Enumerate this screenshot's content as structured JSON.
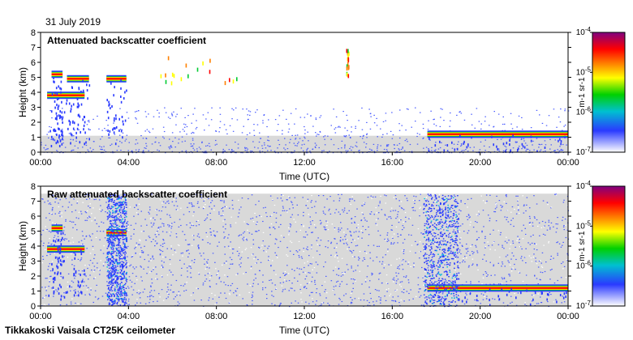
{
  "figure": {
    "date": "31 July 2019",
    "instrument": "Tikkakoski Vaisala CT25K ceilometer"
  },
  "chart_data": [
    {
      "type": "heatmap",
      "title": "Attenuated backscatter coefficient",
      "xlabel": "Time (UTC)",
      "ylabel": "Height (km)",
      "x_ticks": [
        "00:00",
        "04:00",
        "08:00",
        "12:00",
        "16:00",
        "20:00",
        "00:00"
      ],
      "x_range_hours": [
        0,
        24
      ],
      "y_ticks": [
        0,
        1,
        2,
        3,
        4,
        5,
        6,
        7,
        8
      ],
      "ylim": [
        0,
        8
      ],
      "colorbar": {
        "scale": "log",
        "range": [
          1e-07,
          0.0001
        ],
        "tick_labels": [
          "10-7",
          "10-6",
          "10-5",
          "10-4"
        ],
        "units": "m-1 sr-1",
        "colors": [
          "#ffffff",
          "#1f2fff",
          "#00c0d0",
          "#00d000",
          "#ffff00",
          "#ff8000",
          "#ff0000",
          "#800080"
        ]
      },
      "background_noise": "filtered",
      "features": [
        {
          "name": "cloud layer",
          "t_start": 0.3,
          "t_end": 2.0,
          "height_km": 3.8
        },
        {
          "name": "cloud layer",
          "t_start": 0.5,
          "t_end": 1.0,
          "height_km": 5.2
        },
        {
          "name": "cloud layer",
          "t_start": 1.2,
          "t_end": 2.2,
          "height_km": 4.9
        },
        {
          "name": "cloud layer",
          "t_start": 3.0,
          "t_end": 3.9,
          "height_km": 4.9
        },
        {
          "name": "cloud layer",
          "t_start": 17.6,
          "t_end": 24.0,
          "height_km": 1.2
        },
        {
          "name": "isolated returns",
          "t_start": 5.4,
          "t_end": 9.2,
          "height_km": 6.5
        },
        {
          "name": "isolated returns",
          "t_start": 13.9,
          "t_end": 14.0,
          "height_km": 6.9
        }
      ]
    },
    {
      "type": "heatmap",
      "title": "Raw attenuated backscatter coefficient",
      "xlabel": "Time (UTC)",
      "ylabel": "Height (km)",
      "x_ticks": [
        "00:00",
        "04:00",
        "08:00",
        "12:00",
        "16:00",
        "20:00",
        "00:00"
      ],
      "x_range_hours": [
        0,
        24
      ],
      "y_ticks": [
        0,
        1,
        2,
        3,
        4,
        5,
        6,
        7,
        8
      ],
      "ylim": [
        0,
        8
      ],
      "colorbar": {
        "scale": "log",
        "range": [
          1e-07,
          0.0001
        ],
        "tick_labels": [
          "10-7",
          "10-6",
          "10-5",
          "10-4"
        ],
        "units": "m-1 sr-1",
        "colors": [
          "#ffffff",
          "#1f2fff",
          "#00c0d0",
          "#00d000",
          "#ffff00",
          "#ff8000",
          "#ff0000",
          "#800080"
        ]
      },
      "background_noise": "unfiltered",
      "features": [
        {
          "name": "cloud layer",
          "t_start": 0.3,
          "t_end": 2.0,
          "height_km": 3.8
        },
        {
          "name": "cloud layer",
          "t_start": 0.5,
          "t_end": 1.0,
          "height_km": 5.2
        },
        {
          "name": "cloud layer",
          "t_start": 3.0,
          "t_end": 3.9,
          "height_km": 4.9
        },
        {
          "name": "cloud layer",
          "t_start": 17.6,
          "t_end": 24.0,
          "height_km": 1.2
        },
        {
          "name": "precipitation column",
          "t_start": 3.0,
          "t_end": 3.9,
          "height_km": 7.5
        },
        {
          "name": "precipitation column",
          "t_start": 17.4,
          "t_end": 19.0,
          "height_km": 7.5
        }
      ]
    }
  ]
}
